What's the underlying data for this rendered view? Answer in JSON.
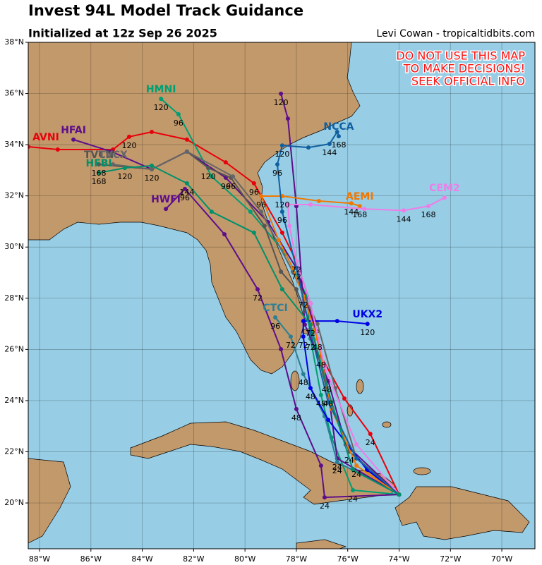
{
  "header": {
    "title": "Invest 94L Model Track Guidance",
    "subtitle": "Initialized at 12z Sep 26 2025",
    "credit": "Levi Cowan - tropicaltidbits.com"
  },
  "warning": [
    "DO NOT USE THIS MAP",
    "TO MAKE DECISIONS!",
    "SEEK OFFICIAL INFO"
  ],
  "map": {
    "lonlim": [
      -88.44,
      -68.71
    ],
    "latlim": [
      18.21,
      38.0
    ],
    "lon_ticks": [
      {
        "value": -88,
        "label": "88°W"
      },
      {
        "value": -86,
        "label": "86°W"
      },
      {
        "value": -84,
        "label": "84°W"
      },
      {
        "value": -82,
        "label": "82°W"
      },
      {
        "value": -80,
        "label": "80°W"
      },
      {
        "value": -78,
        "label": "78°W"
      },
      {
        "value": -76,
        "label": "76°W"
      },
      {
        "value": -74,
        "label": "74°W"
      },
      {
        "value": -72,
        "label": "72°W"
      },
      {
        "value": -70,
        "label": "70°W"
      }
    ],
    "lat_ticks": [
      {
        "value": 20,
        "label": "20°N"
      },
      {
        "value": 22,
        "label": "22°N"
      },
      {
        "value": 24,
        "label": "24°N"
      },
      {
        "value": 26,
        "label": "26°N"
      },
      {
        "value": 28,
        "label": "28°N"
      },
      {
        "value": 30,
        "label": "30°N"
      },
      {
        "value": 32,
        "label": "32°N"
      },
      {
        "value": 34,
        "label": "34°N"
      },
      {
        "value": 36,
        "label": "36°N"
      },
      {
        "value": 38,
        "label": "38°N"
      }
    ],
    "tracks": [
      {
        "name": "AVNI",
        "color": "#e8000b",
        "points": [
          [
            -74.0,
            20.33
          ],
          [
            -75.12,
            22.7
          ],
          [
            -76.13,
            24.08
          ],
          [
            -77.04,
            25.73
          ],
          [
            -77.45,
            27.8
          ],
          [
            -78.0,
            29.45
          ],
          [
            -78.55,
            30.56
          ],
          [
            -79.65,
            32.49
          ],
          [
            -80.75,
            33.31
          ],
          [
            -82.26,
            34.2
          ],
          [
            -83.63,
            34.5
          ],
          [
            -84.51,
            34.31
          ],
          [
            -85.14,
            33.81
          ],
          [
            -87.29,
            33.81
          ],
          [
            -88.44,
            33.92
          ]
        ],
        "hours": [
          null,
          24,
          null,
          48,
          null,
          72,
          null,
          96,
          null,
          null,
          null,
          120,
          null,
          null,
          null
        ]
      },
      {
        "name": "HMNI",
        "color": "#009e73",
        "points": [
          [
            -74.0,
            20.33
          ],
          [
            -75.8,
            20.5
          ],
          [
            -76.63,
            22.56
          ],
          [
            -77.04,
            24.22
          ],
          [
            -77.45,
            26.42
          ],
          [
            -77.59,
            28.08
          ],
          [
            -78.41,
            29.73
          ],
          [
            -79.79,
            31.38
          ],
          [
            -81.3,
            32.76
          ],
          [
            -82.59,
            35.19
          ],
          [
            -83.27,
            35.79
          ]
        ],
        "hours": [
          null,
          24,
          null,
          48,
          72,
          null,
          null,
          null,
          null,
          96,
          120
        ]
      },
      {
        "name": "HWFI",
        "color": "#5e0e8a",
        "points": [
          [
            -74.0,
            20.33
          ],
          [
            -76.9,
            20.22
          ],
          [
            -77.04,
            21.46
          ],
          [
            -78.0,
            23.67
          ],
          [
            -78.6,
            26.01
          ],
          [
            -79.51,
            28.35
          ],
          [
            -80.8,
            30.5
          ],
          [
            -82.34,
            32.27
          ],
          [
            -83.08,
            31.49
          ]
        ],
        "hours": [
          null,
          24,
          null,
          48,
          null,
          72,
          null,
          96,
          null
        ]
      },
      {
        "name": "HFAI",
        "color": "#5e0e8a",
        "points": [
          [
            -74.0,
            20.33
          ],
          [
            -76.41,
            21.74
          ],
          [
            -76.82,
            24.77
          ],
          [
            -77.31,
            26.97
          ],
          [
            -78.0,
            29.18
          ],
          [
            -79.1,
            30.97
          ],
          [
            -80.75,
            32.71
          ],
          [
            -82.26,
            33.73
          ],
          [
            -83.63,
            33.04
          ],
          [
            -85.2,
            33.73
          ],
          [
            -86.68,
            34.2
          ]
        ],
        "hours": [
          null,
          24,
          48,
          null,
          72,
          null,
          96,
          null,
          120,
          null,
          null
        ]
      },
      {
        "color": "#5e0e8a",
        "points": [
          [
            -74.0,
            20.33
          ],
          [
            -76.08,
            22.29
          ],
          [
            -76.76,
            24.77
          ],
          [
            -77.67,
            26.97
          ],
          [
            -78.0,
            31.6
          ],
          [
            -78.33,
            35.02
          ],
          [
            -78.6,
            35.99
          ]
        ],
        "hours": [
          null,
          null,
          null,
          null,
          null,
          null,
          120
        ]
      },
      {
        "name": "TVCN",
        "color": "#555555",
        "points": [
          [
            -74.0,
            20.33
          ],
          [
            -75.94,
            22.01
          ],
          [
            -76.76,
            24.22
          ],
          [
            -77.45,
            26.97
          ],
          [
            -78.0,
            28.35
          ],
          [
            -78.6,
            29.04
          ],
          [
            -79.24,
            30.83
          ],
          [
            -80.55,
            32.71
          ],
          [
            -81.43,
            33.09
          ],
          [
            -82.26,
            33.73
          ],
          [
            -83.63,
            33.04
          ],
          [
            -85.69,
            33.23
          ]
        ],
        "hours": [
          null,
          24,
          48,
          72,
          null,
          null,
          null,
          96,
          120,
          null,
          null,
          168
        ]
      },
      {
        "name": "TVCX",
        "color": "#666666",
        "points": [
          [
            -74.0,
            20.33
          ],
          [
            -75.66,
            21.74
          ],
          [
            -76.49,
            24.49
          ],
          [
            -77.18,
            27.0
          ],
          [
            -78.14,
            29.04
          ],
          [
            -79.37,
            31.38
          ],
          [
            -80.47,
            32.76
          ],
          [
            -82.26,
            33.73
          ],
          [
            -83.63,
            33.04
          ],
          [
            -85.14,
            33.23
          ]
        ],
        "hours": [
          null,
          null,
          null,
          null,
          null,
          null,
          null,
          null,
          null,
          null
        ]
      },
      {
        "name": "CTCI",
        "color": "#2a7f96",
        "points": [
          [
            -74.0,
            20.33
          ],
          [
            -76.41,
            21.6
          ],
          [
            -76.9,
            23.39
          ],
          [
            -77.73,
            25.04
          ],
          [
            -78.22,
            26.5
          ],
          [
            -78.82,
            27.25
          ]
        ],
        "hours": [
          null,
          24,
          null,
          48,
          72,
          96
        ]
      },
      {
        "name": "UKX2",
        "color": "#0000e6",
        "points": [
          [
            -74.0,
            20.33
          ],
          [
            -75.25,
            21.3
          ],
          [
            -76.76,
            23.25
          ],
          [
            -77.45,
            24.49
          ],
          [
            -77.73,
            26.5
          ],
          [
            -77.73,
            27.11
          ],
          [
            -76.41,
            27.11
          ],
          [
            -75.23,
            27.0
          ]
        ],
        "hours": [
          null,
          null,
          null,
          48,
          72,
          null,
          null,
          120
        ]
      },
      {
        "name": "AEMI",
        "color": "#f07800",
        "points": [
          [
            -74.0,
            20.33
          ],
          [
            -75.66,
            21.46
          ],
          [
            -76.63,
            23.67
          ],
          [
            -77.18,
            26.42
          ],
          [
            -77.73,
            28.08
          ],
          [
            -78.14,
            29.18
          ],
          [
            -78.69,
            30.28
          ],
          [
            -79.37,
            31.99
          ],
          [
            -78.55,
            31.99
          ],
          [
            -77.12,
            31.8
          ],
          [
            -75.86,
            31.71
          ],
          [
            -75.53,
            31.6
          ]
        ],
        "hours": [
          null,
          24,
          null,
          48,
          72,
          null,
          null,
          96,
          120,
          null,
          144,
          168
        ]
      },
      {
        "name": "CEM2",
        "color": "#f07ce8",
        "points": [
          [
            -74.0,
            20.33
          ],
          [
            -75.66,
            22.29
          ],
          [
            -76.9,
            25.32
          ],
          [
            -77.45,
            27.8
          ],
          [
            -78.0,
            29.45
          ],
          [
            -78.27,
            30.83
          ],
          [
            -78.33,
            31.66
          ],
          [
            -77.45,
            31.66
          ],
          [
            -75.36,
            31.49
          ],
          [
            -73.82,
            31.43
          ],
          [
            -72.86,
            31.6
          ],
          [
            -72.23,
            31.93
          ]
        ],
        "hours": [
          null,
          null,
          null,
          null,
          null,
          null,
          null,
          null,
          null,
          144,
          168,
          null
        ]
      },
      {
        "name": "NCCA",
        "color": "#1060a0",
        "points": [
          [
            -74.0,
            20.33
          ],
          [
            -75.66,
            21.74
          ],
          [
            -76.76,
            23.94
          ],
          [
            -77.45,
            26.7
          ],
          [
            -78.0,
            29.18
          ],
          [
            -78.55,
            31.38
          ],
          [
            -78.74,
            33.23
          ],
          [
            -78.55,
            33.97
          ],
          [
            -77.53,
            33.89
          ],
          [
            -76.71,
            34.03
          ],
          [
            -76.41,
            34.5
          ],
          [
            -76.35,
            34.33
          ]
        ],
        "hours": [
          null,
          null,
          null,
          null,
          null,
          96,
          96,
          120,
          null,
          144,
          null,
          168
        ]
      },
      {
        "name": "HFBI",
        "color": "#00906a",
        "points": [
          [
            -74.0,
            20.33
          ],
          [
            -75.8,
            21.3
          ],
          [
            -76.63,
            23.94
          ],
          [
            -77.45,
            26.97
          ],
          [
            -78.55,
            28.35
          ],
          [
            -79.65,
            30.56
          ],
          [
            -81.3,
            31.38
          ],
          [
            -82.26,
            32.49
          ],
          [
            -83.63,
            33.18
          ],
          [
            -84.68,
            33.09
          ],
          [
            -85.69,
            32.9
          ]
        ],
        "hours": [
          null,
          null,
          null,
          null,
          null,
          null,
          null,
          144,
          null,
          120,
          168
        ]
      }
    ]
  }
}
